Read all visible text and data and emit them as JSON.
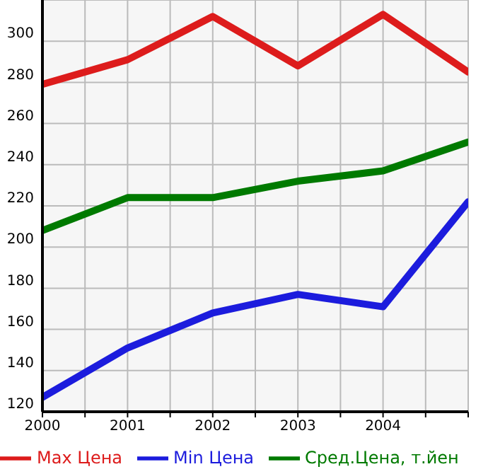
{
  "chart_data": {
    "type": "line",
    "x": [
      2000,
      2001,
      2002,
      2003,
      2004,
      2005
    ],
    "series": [
      {
        "name": "Max Цена",
        "color": "#dd1c1c",
        "values": [
          279,
          291,
          312,
          288,
          313,
          285
        ]
      },
      {
        "name": "Min Цена",
        "color": "#1c1cdd",
        "values": [
          127,
          151,
          168,
          177,
          171,
          222
        ]
      },
      {
        "name": "Сред.Цена, т.йен",
        "color": "#007a00",
        "values": [
          208,
          224,
          224,
          232,
          237,
          251
        ]
      }
    ],
    "xlim": [
      2000,
      2005
    ],
    "xticks": [
      2000,
      {
        "value": 2000.5,
        "label": null
      },
      2001,
      {
        "value": 2001.5,
        "label": null
      },
      2002,
      {
        "value": 2002.5,
        "label": null
      },
      2003,
      {
        "value": 2003.5,
        "label": null
      },
      2004,
      {
        "value": 2004.5,
        "label": null
      },
      {
        "value": 2005,
        "label": null
      }
    ],
    "ylim": [
      120,
      320
    ],
    "yticks": [
      120,
      140,
      160,
      180,
      200,
      220,
      240,
      260,
      280,
      300,
      {
        "value": 320,
        "label": null
      }
    ],
    "grid": true,
    "legend": "bottom",
    "marker": "none",
    "line_style": "solid"
  }
}
